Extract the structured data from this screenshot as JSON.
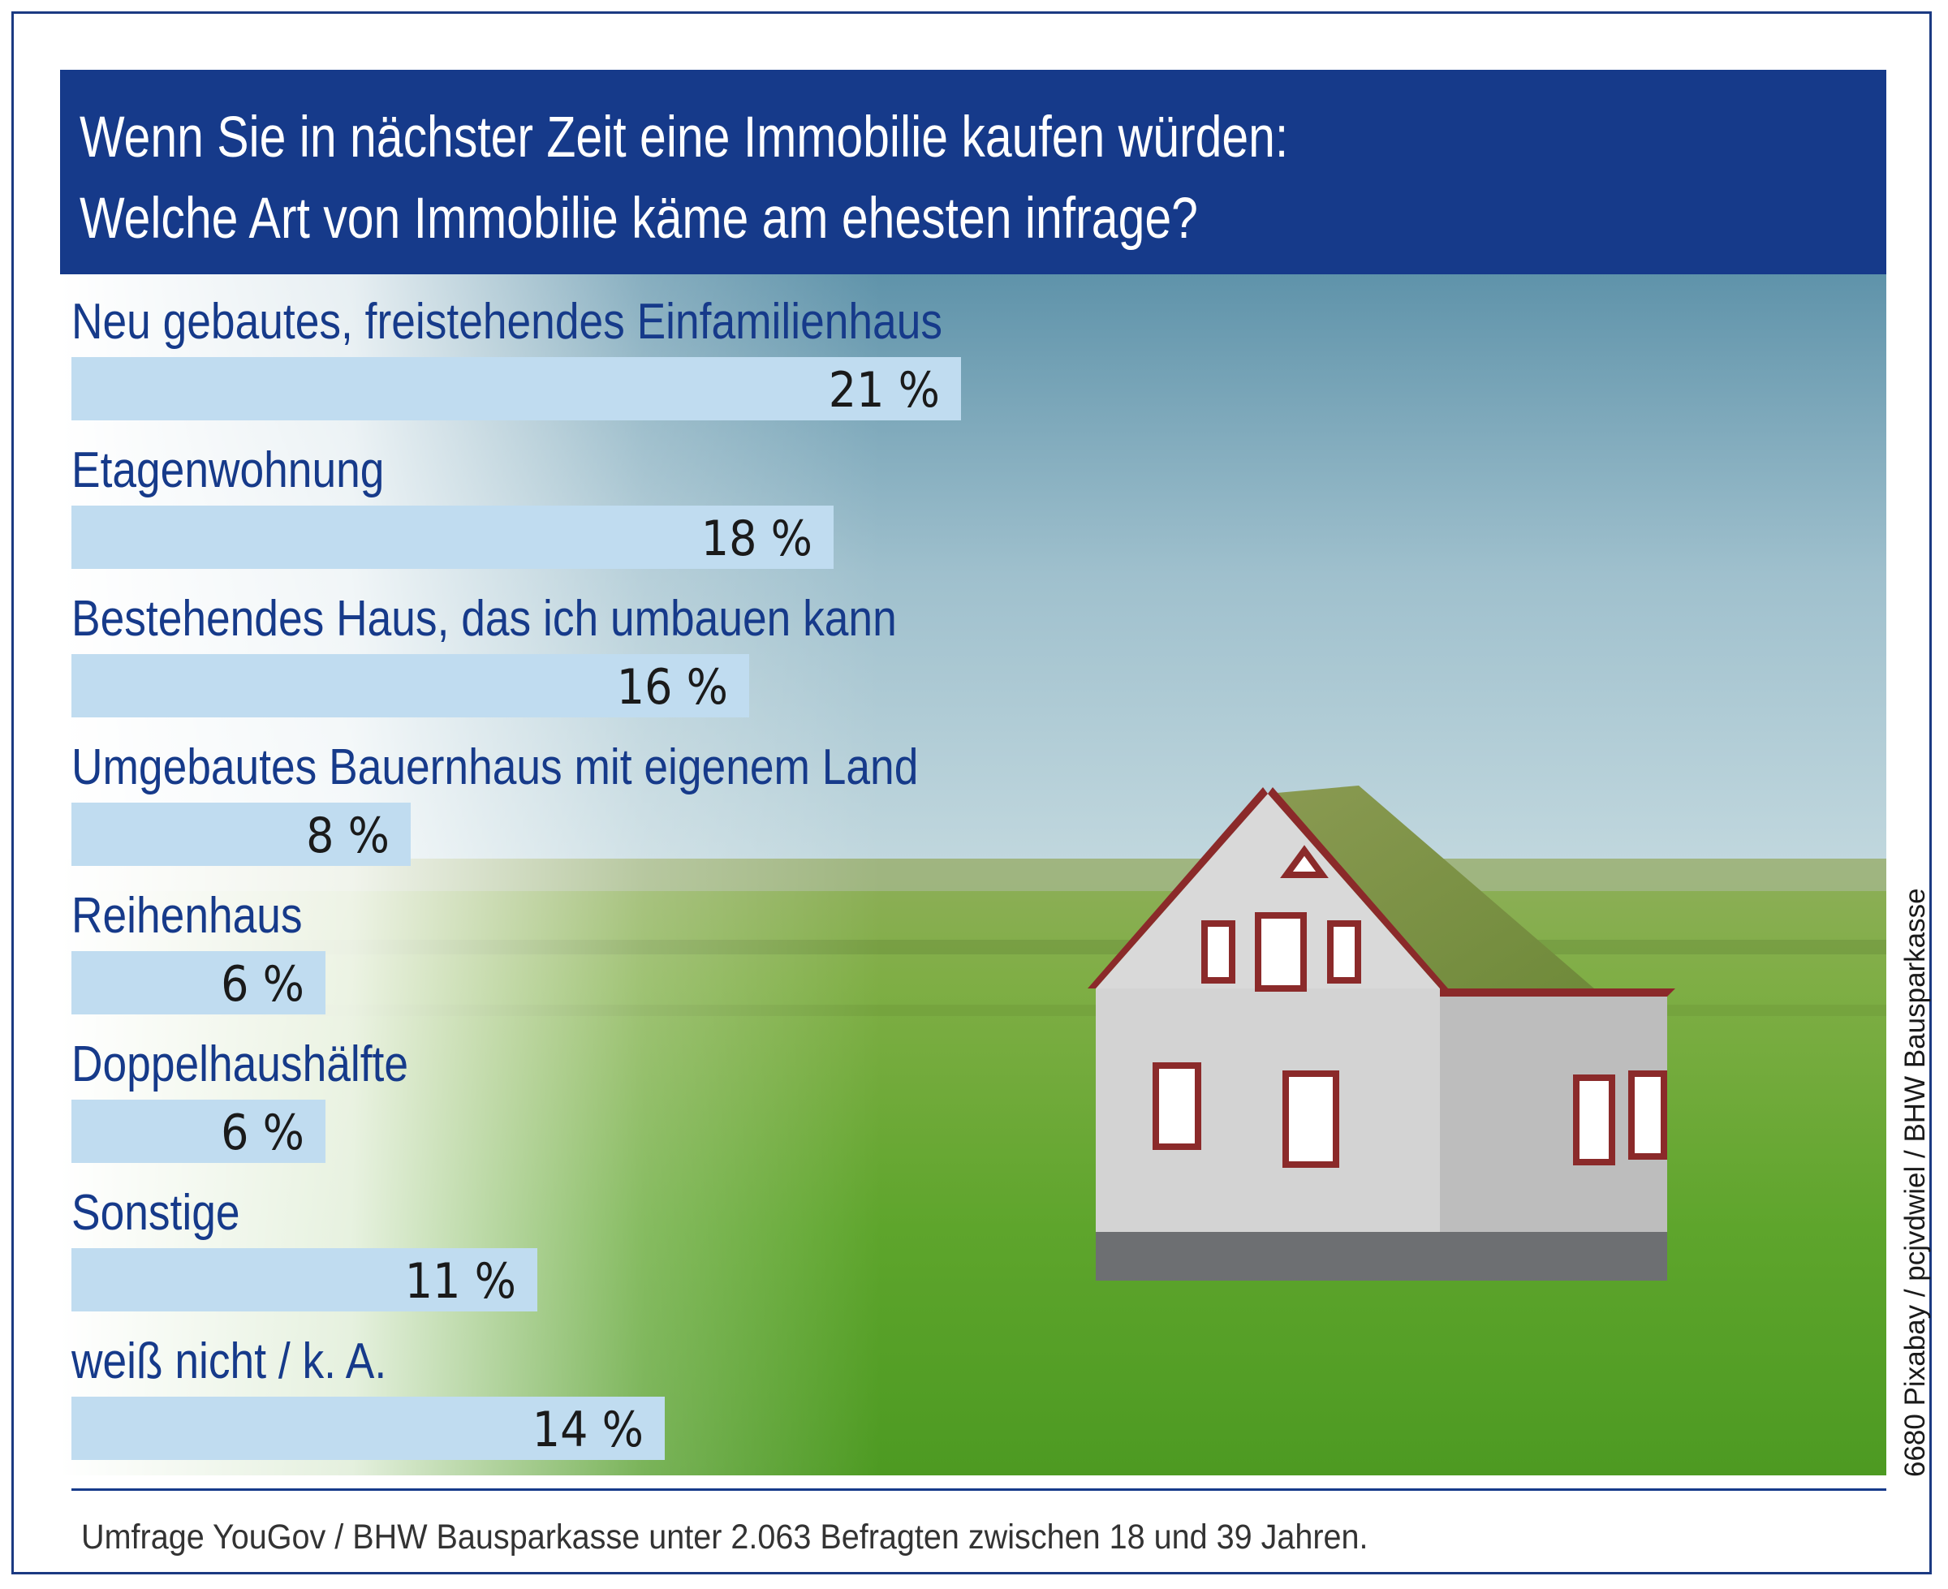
{
  "chart_data": {
    "type": "bar",
    "orientation": "horizontal",
    "title": "Wenn Sie in nächster Zeit eine Immobilie kaufen würden: Welche Art von Immobilie käme am ehesten infrage?",
    "title_lines": [
      "Wenn Sie in nächster Zeit eine Immobilie kaufen würden:",
      "Welche Art von Immobilie käme am ehesten infrage?"
    ],
    "categories": [
      "Neu gebautes, freistehendes Einfamilienhaus",
      "Etagenwohnung",
      "Bestehendes Haus, das ich umbauen kann",
      "Umgebautes Bauernhaus mit eigenem Land",
      "Reihenhaus",
      "Doppelhaushälfte",
      "Sonstige",
      "weiß nicht / k. A."
    ],
    "values": [
      21,
      18,
      16,
      8,
      6,
      6,
      11,
      14
    ],
    "value_labels": [
      "21 %",
      "18 %",
      "16 %",
      "8 %",
      "6 %",
      "6 %",
      "11 %",
      "14 %"
    ],
    "unit": "%",
    "xlim": [
      0,
      21
    ],
    "grid": false,
    "legend": "none"
  },
  "credit": "6680 Pixabay / pcjvdwiel / BHW Bausparkasse",
  "footer": "Umfrage YouGov / BHW Bausparkasse unter 2.063 Befragten zwischen 18 und 39 Jahren.",
  "colors": {
    "header": "#163a8a",
    "label_text": "#163a8a",
    "bar": "#c0dcf0",
    "value_text": "#1a1a1a"
  }
}
